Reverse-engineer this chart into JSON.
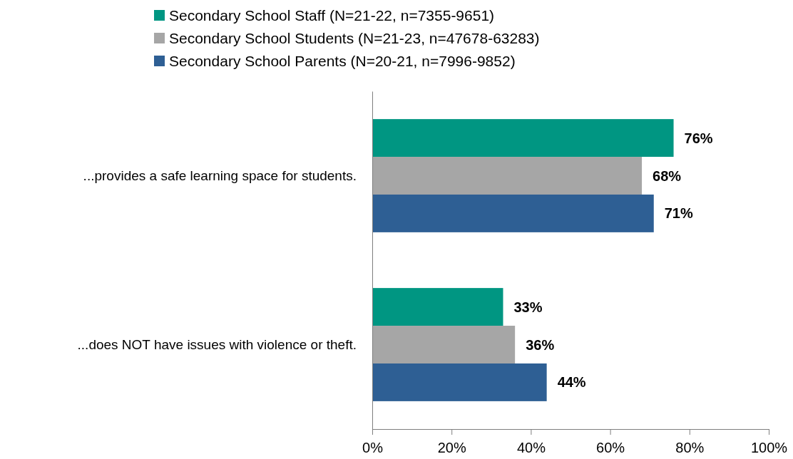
{
  "chart_data": {
    "type": "bar",
    "orientation": "horizontal",
    "categories": [
      "...provides a safe learning space for students.",
      "...does NOT have issues with violence or theft."
    ],
    "series": [
      {
        "name": "Secondary School Staff (N=21-22, n=7355-9651)",
        "color": "#009682",
        "values": [
          76,
          33
        ],
        "value_labels": [
          "76%",
          "33%"
        ]
      },
      {
        "name": "Secondary School Students (N=21-23, n=47678-63283)",
        "color": "#a6a6a6",
        "values": [
          68,
          36
        ],
        "value_labels": [
          "68%",
          "36%"
        ]
      },
      {
        "name": "Secondary School Parents (N=20-21, n=7996-9852)",
        "color": "#2e5f94",
        "values": [
          71,
          44
        ],
        "value_labels": [
          "71%",
          "44%"
        ]
      }
    ],
    "xlim": [
      0,
      100
    ],
    "xticks": [
      {
        "value": 0,
        "label": "0%"
      },
      {
        "value": 20,
        "label": "20%"
      },
      {
        "value": 40,
        "label": "40%"
      },
      {
        "value": 60,
        "label": "60%"
      },
      {
        "value": 80,
        "label": "80%"
      },
      {
        "value": 100,
        "label": "100%"
      }
    ],
    "grid": false,
    "legend": "top"
  }
}
